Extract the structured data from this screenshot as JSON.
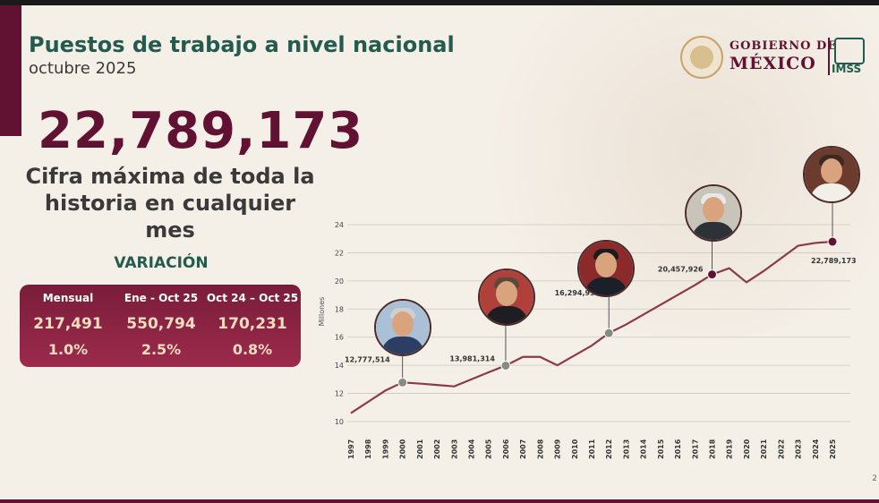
{
  "header": {
    "title": "Puestos de trabajo a nivel nacional",
    "subtitle": "octubre 2025"
  },
  "headline": {
    "value": "22,789,173",
    "caption_line1": "Cifra máxima de toda la",
    "caption_line2": "historia en cualquier mes"
  },
  "variation": {
    "title": "VARIACIÓN",
    "columns": [
      {
        "header": "Mensual",
        "value": "217,491",
        "percent": "1.0%"
      },
      {
        "header": "Ene - Oct 25",
        "value": "550,794",
        "percent": "2.5%"
      },
      {
        "header": "Oct 24 – Oct 25",
        "value": "170,231",
        "percent": "0.8%"
      }
    ]
  },
  "logo": {
    "line1": "GOBIERNO DE",
    "line2": "MÉXICO",
    "imss": "IMSS"
  },
  "page_number": "2",
  "colors": {
    "guinda": "#611232",
    "green": "#235b4e",
    "line": "#8b3a4a",
    "marker_gray": "#8a8a82"
  },
  "chart_data": {
    "type": "line",
    "title": "",
    "xlabel": "",
    "ylabel": "Millones",
    "ylim": [
      10,
      24
    ],
    "yticks": [
      10,
      12,
      14,
      16,
      18,
      20,
      22,
      24
    ],
    "grid": true,
    "x": [
      1997,
      1998,
      1999,
      2000,
      2001,
      2002,
      2003,
      2004,
      2005,
      2006,
      2007,
      2008,
      2009,
      2010,
      2011,
      2012,
      2013,
      2014,
      2015,
      2016,
      2017,
      2018,
      2019,
      2020,
      2021,
      2022,
      2023,
      2024,
      2025
    ],
    "series": [
      {
        "values": [
          10.6,
          11.4,
          12.2,
          12.78,
          12.7,
          12.6,
          12.5,
          13.0,
          13.5,
          13.98,
          14.6,
          14.6,
          14.0,
          14.7,
          15.4,
          16.29,
          16.9,
          17.6,
          18.3,
          19.0,
          19.7,
          20.46,
          20.9,
          19.9,
          20.7,
          21.6,
          22.5,
          22.7,
          22.79
        ]
      }
    ],
    "markers": [
      {
        "x": 2000,
        "y": 12.78,
        "label": "12,777,514",
        "color": "gray"
      },
      {
        "x": 2006,
        "y": 13.98,
        "label": "13,981,314",
        "color": "gray"
      },
      {
        "x": 2012,
        "y": 16.29,
        "label": "16,294,936",
        "color": "gray"
      },
      {
        "x": 2018,
        "y": 20.46,
        "label": "20,457,926",
        "color": "guinda"
      },
      {
        "x": 2025,
        "y": 22.79,
        "label": "22,789,173",
        "color": "guinda"
      }
    ]
  }
}
